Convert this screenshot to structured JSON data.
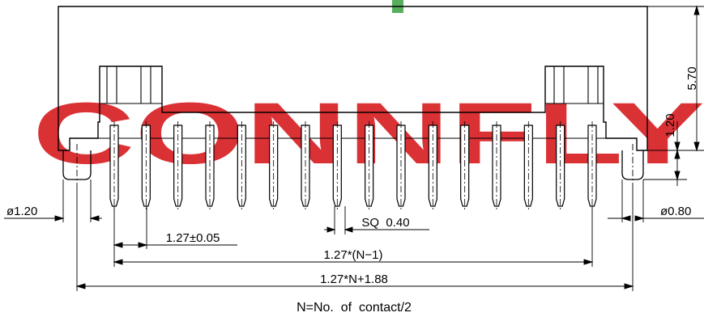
{
  "watermark": {
    "text": "CONNFLY",
    "color": "#d9262b",
    "accent": "#3aa142"
  },
  "dims": {
    "height_total": "5.70",
    "height_post": "1.20",
    "post_dia": "ø1.20",
    "pin_dia": "ø0.80",
    "pitch": "1.27±0.05",
    "pin_square": "SQ  0.40",
    "pin_span": "1.27*(N−1)",
    "overall": "1.27*N+1.88"
  },
  "note": "N=No.  of  contact/2",
  "pins": {
    "count": 16
  }
}
